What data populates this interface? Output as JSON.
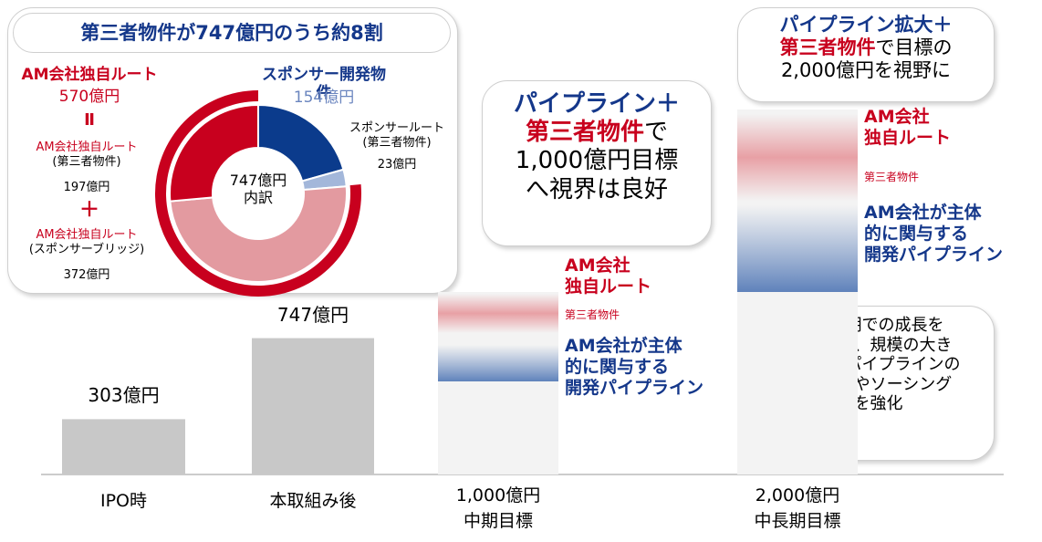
{
  "chart_data": [
    {
      "type": "bar",
      "categories": [
        "IPO時",
        "本取組み後",
        "中期目標",
        "中長期目標"
      ],
      "values": [
        303,
        747,
        1000,
        2000
      ],
      "value_labels": [
        "303億円",
        "747億円",
        "1,000億円",
        "2,000億円"
      ],
      "color": "#c8c8c8",
      "ylim": [
        0,
        2000
      ]
    },
    {
      "type": "donut",
      "title": "第三者物件が747億円のうち約8割",
      "center_label": "747億円\n内訳",
      "inner": {
        "categories": [
          "スポンサー開発物件",
          "スポンサールート\n(第三者物件)",
          "AM会社独自ルート\n(スポンサーブリッジ)",
          "AM会社独自ルート\n(第三者物件)"
        ],
        "values": [
          154,
          23,
          372,
          197
        ],
        "value_labels": [
          "154億円",
          "23億円",
          "372億円",
          "197億円"
        ],
        "colors": [
          "#0b3b8c",
          "#a3b7da",
          "#e39aa0",
          "#c8001e"
        ]
      },
      "outer": {
        "name": "AM会社独自ルート",
        "value": 570,
        "value_label": "570億円",
        "color": "#c8001e"
      },
      "operators": [
        "Ⅱ",
        "＋"
      ]
    }
  ],
  "segment_labels": {
    "own_route": "AM会社\n独自ルート",
    "own_route_note": "第三者物件",
    "pipeline": "AM会社が主体\n的に関与する\n開発パイプライン"
  },
  "callout_1000": [
    "パイプライン＋",
    "第三者物件",
    "で",
    "1,000億円目標\nへ視界は良好"
  ],
  "callout_2000": [
    "パイプライン拡大＋",
    "第三者物件",
    "で目標の",
    "2,000億円を視野に"
  ],
  "note": "中長期での成長を\n見据え、規模の大き\nい開発パイプラインの\n積上げやソーシング\nを強化"
}
